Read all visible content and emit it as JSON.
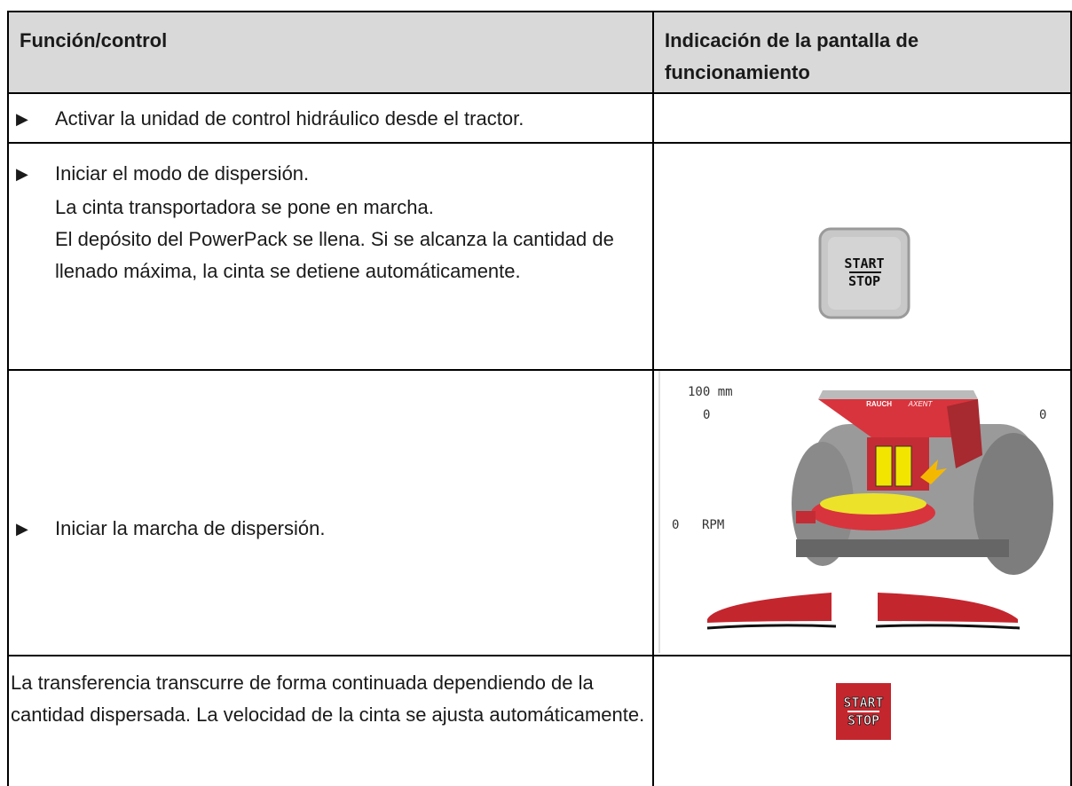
{
  "table": {
    "header": [
      "Función/control",
      "Indicación de la pantalla de funcionamiento"
    ],
    "rows": [
      {
        "instruction": "Activar la unidad de control hidráulico desde el tractor."
      },
      {
        "instruction": "Iniciar el modo de dispersión.",
        "notes": [
          "La cinta transportadora se pone en marcha.",
          "El depósito del PowerPack se llena. Si se alcanza la cantidad de llenado máxima, la cinta se detiene automáticamente."
        ],
        "screen": {
          "button_top": "START",
          "button_bottom": "STOP"
        }
      },
      {
        "instruction": "Iniciar la marcha de dispersión.",
        "screen": {
          "distance": "100 mm",
          "left_value": "0",
          "right_value": "0",
          "speed_value": "0",
          "speed_unit": "RPM",
          "brand": "RAUCH",
          "model": "AXENT"
        }
      },
      {
        "text": "La transferencia transcurre de forma continuada dependiendo de la cantidad dispersada. La velocidad de la cinta se ajusta automáticamente.",
        "screen": {
          "button_top": "START",
          "button_bottom": "STOP"
        }
      }
    ]
  }
}
